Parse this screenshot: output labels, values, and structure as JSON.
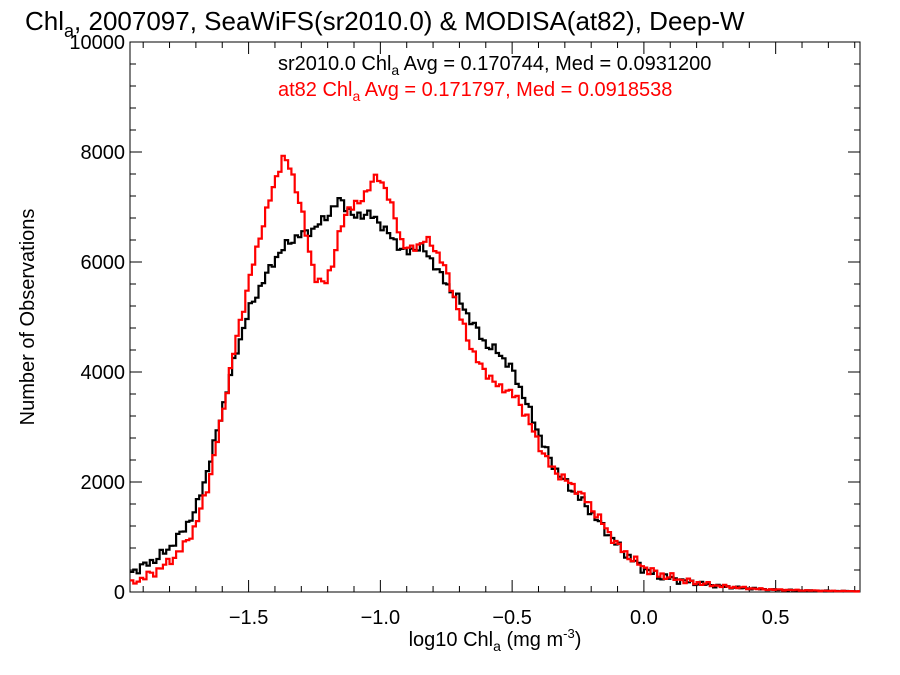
{
  "chart_data": {
    "type": "line",
    "title": {
      "main": "Chl",
      "sub": "a",
      "rest": ", 2007097, SeaWiFS(sr2010.0) & MODISA(at82), Deep-W"
    },
    "xlabel": {
      "pre": "log10 Chl",
      "sub": "a",
      "mid": " (mg m",
      "sup": "-3",
      "post": ")"
    },
    "ylabel": "Number of Observations",
    "xlim": [
      -1.95,
      0.82
    ],
    "ylim": [
      0,
      10000
    ],
    "xticks": [
      {
        "value": -1.5,
        "label": "−1.5"
      },
      {
        "value": -1.0,
        "label": "−1.0"
      },
      {
        "value": -0.5,
        "label": "−0.5"
      },
      {
        "value": 0.0,
        "label": "0.0"
      },
      {
        "value": 0.5,
        "label": "0.5"
      }
    ],
    "yticks": [
      {
        "value": 0,
        "label": "0"
      },
      {
        "value": 2000,
        "label": "2000"
      },
      {
        "value": 4000,
        "label": "4000"
      },
      {
        "value": 6000,
        "label": "6000"
      },
      {
        "value": 8000,
        "label": "8000"
      },
      {
        "value": 10000,
        "label": "10000"
      }
    ],
    "annotations": [
      {
        "pre": "sr2010.0 Chl",
        "sub": "a",
        "post": " Avg = 0.170744, Med = 0.0931200",
        "color": "#000000"
      },
      {
        "pre": "at82 Chl",
        "sub": "a",
        "post": " Avg = 0.171797, Med = 0.0918538",
        "color": "#ff0000"
      }
    ],
    "series": [
      {
        "color": "#000000",
        "points": [
          [
            -1.95,
            350
          ],
          [
            -1.9,
            470
          ],
          [
            -1.85,
            600
          ],
          [
            -1.8,
            800
          ],
          [
            -1.75,
            1100
          ],
          [
            -1.7,
            1500
          ],
          [
            -1.65,
            2300
          ],
          [
            -1.6,
            3300
          ],
          [
            -1.55,
            4300
          ],
          [
            -1.5,
            5100
          ],
          [
            -1.45,
            5600
          ],
          [
            -1.4,
            6050
          ],
          [
            -1.35,
            6350
          ],
          [
            -1.3,
            6500
          ],
          [
            -1.25,
            6600
          ],
          [
            -1.2,
            6850
          ],
          [
            -1.15,
            7150
          ],
          [
            -1.1,
            6800
          ],
          [
            -1.05,
            6900
          ],
          [
            -1.0,
            6700
          ],
          [
            -0.95,
            6400
          ],
          [
            -0.9,
            6150
          ],
          [
            -0.85,
            6300
          ],
          [
            -0.8,
            6000
          ],
          [
            -0.75,
            5600
          ],
          [
            -0.7,
            5300
          ],
          [
            -0.65,
            4900
          ],
          [
            -0.6,
            4500
          ],
          [
            -0.55,
            4350
          ],
          [
            -0.5,
            4050
          ],
          [
            -0.45,
            3500
          ],
          [
            -0.4,
            2900
          ],
          [
            -0.35,
            2350
          ],
          [
            -0.3,
            2000
          ],
          [
            -0.25,
            1750
          ],
          [
            -0.2,
            1450
          ],
          [
            -0.15,
            1150
          ],
          [
            -0.1,
            850
          ],
          [
            -0.05,
            600
          ],
          [
            0.0,
            420
          ],
          [
            0.05,
            300
          ],
          [
            0.1,
            250
          ],
          [
            0.15,
            200
          ],
          [
            0.2,
            160
          ],
          [
            0.25,
            130
          ],
          [
            0.3,
            100
          ],
          [
            0.35,
            80
          ],
          [
            0.4,
            65
          ],
          [
            0.45,
            50
          ],
          [
            0.5,
            40
          ],
          [
            0.6,
            28
          ],
          [
            0.7,
            20
          ],
          [
            0.82,
            12
          ]
        ]
      },
      {
        "color": "#ff0000",
        "points": [
          [
            -1.95,
            150
          ],
          [
            -1.9,
            250
          ],
          [
            -1.85,
            380
          ],
          [
            -1.8,
            550
          ],
          [
            -1.75,
            800
          ],
          [
            -1.7,
            1200
          ],
          [
            -1.65,
            2000
          ],
          [
            -1.6,
            3200
          ],
          [
            -1.55,
            4500
          ],
          [
            -1.5,
            5600
          ],
          [
            -1.45,
            6600
          ],
          [
            -1.4,
            7450
          ],
          [
            -1.37,
            7900
          ],
          [
            -1.34,
            7700
          ],
          [
            -1.3,
            7000
          ],
          [
            -1.27,
            6200
          ],
          [
            -1.24,
            5650
          ],
          [
            -1.21,
            5600
          ],
          [
            -1.18,
            6000
          ],
          [
            -1.15,
            6600
          ],
          [
            -1.12,
            7000
          ],
          [
            -1.08,
            7050
          ],
          [
            -1.04,
            7400
          ],
          [
            -1.01,
            7550
          ],
          [
            -0.98,
            7350
          ],
          [
            -0.95,
            6900
          ],
          [
            -0.92,
            6400
          ],
          [
            -0.89,
            6200
          ],
          [
            -0.86,
            6300
          ],
          [
            -0.83,
            6400
          ],
          [
            -0.8,
            6300
          ],
          [
            -0.77,
            6050
          ],
          [
            -0.74,
            5700
          ],
          [
            -0.7,
            5050
          ],
          [
            -0.66,
            4500
          ],
          [
            -0.62,
            4100
          ],
          [
            -0.58,
            3900
          ],
          [
            -0.55,
            3700
          ],
          [
            -0.52,
            3700
          ],
          [
            -0.48,
            3500
          ],
          [
            -0.44,
            3150
          ],
          [
            -0.4,
            2700
          ],
          [
            -0.35,
            2250
          ],
          [
            -0.3,
            2050
          ],
          [
            -0.25,
            1850
          ],
          [
            -0.2,
            1550
          ],
          [
            -0.15,
            1200
          ],
          [
            -0.1,
            850
          ],
          [
            -0.05,
            620
          ],
          [
            0.0,
            450
          ],
          [
            0.05,
            330
          ],
          [
            0.1,
            270
          ],
          [
            0.15,
            210
          ],
          [
            0.2,
            170
          ],
          [
            0.25,
            135
          ],
          [
            0.3,
            105
          ],
          [
            0.35,
            85
          ],
          [
            0.4,
            68
          ],
          [
            0.45,
            52
          ],
          [
            0.5,
            42
          ],
          [
            0.6,
            30
          ],
          [
            0.7,
            20
          ],
          [
            0.82,
            12
          ]
        ]
      }
    ]
  }
}
